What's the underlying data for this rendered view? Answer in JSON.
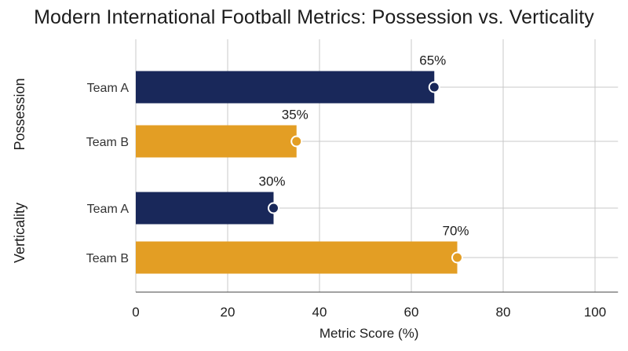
{
  "chart_data": {
    "type": "bar",
    "orientation": "horizontal",
    "title": "Modern International Football Metrics: Possession vs. Verticality",
    "xlabel": "Metric Score (%)",
    "ylabel": "",
    "xlim": [
      0,
      105
    ],
    "xticks": [
      0,
      20,
      40,
      60,
      80,
      100
    ],
    "grid": true,
    "legend": "none",
    "groups": [
      {
        "label": "Possession",
        "bars": [
          {
            "team": "Team A",
            "value": 65,
            "label": "65%"
          },
          {
            "team": "Team B",
            "value": 35,
            "label": "35%"
          }
        ]
      },
      {
        "label": "Verticality",
        "bars": [
          {
            "team": "Team A",
            "value": 30,
            "label": "30%"
          },
          {
            "team": "Team B",
            "value": 70,
            "label": "70%"
          }
        ]
      }
    ],
    "colors": {
      "Team A": "#19285a",
      "Team B": "#e39e24",
      "grid": "#c8c8c8",
      "axis": "#444444"
    }
  }
}
